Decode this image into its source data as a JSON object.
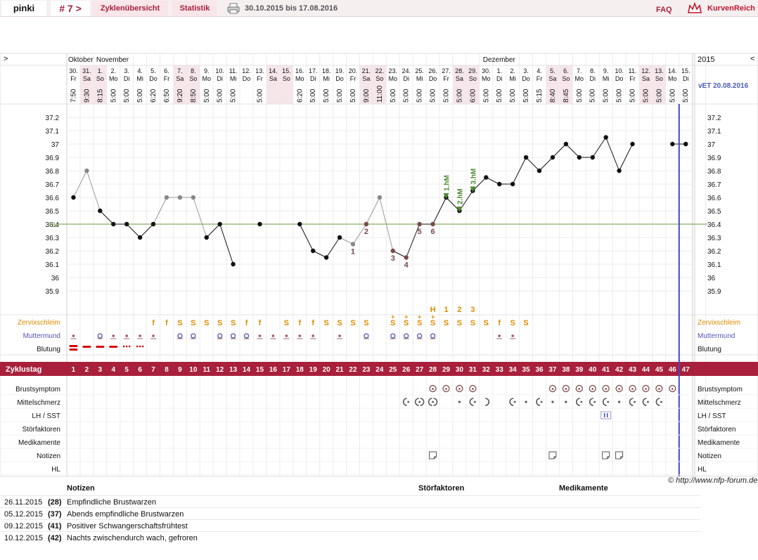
{
  "nav": {
    "user": "pinki",
    "cycle_nr": "# 7 >",
    "tab_zyklen": "Zyklenübersicht",
    "tab_statistik": "Statistik",
    "date_range": "30.10.2015 bis 17.08.2016",
    "faq": "FAQ",
    "logo_text": "KurvenReich"
  },
  "header": {
    "left_arrow": ">",
    "right_arrow": "<",
    "year": "2015",
    "vet": "vET 20.08.2016",
    "months": [
      {
        "name": "Oktober",
        "day": 0
      },
      {
        "name": "November",
        "day": 1
      },
      {
        "name": "Dezember",
        "day": 32
      }
    ]
  },
  "days": [
    {
      "d": "30.",
      "w": "Fr",
      "t": "7:50",
      "we": false
    },
    {
      "d": "31.",
      "w": "Sa",
      "t": "9:30",
      "we": true
    },
    {
      "d": "1.",
      "w": "So",
      "t": "8:15",
      "we": true
    },
    {
      "d": "2.",
      "w": "Mo",
      "t": "5:00",
      "we": false
    },
    {
      "d": "3.",
      "w": "Di",
      "t": "5:00",
      "we": false
    },
    {
      "d": "4.",
      "w": "Mi",
      "t": "5:00",
      "we": false
    },
    {
      "d": "5.",
      "w": "Do",
      "t": "6:20",
      "we": false
    },
    {
      "d": "6.",
      "w": "Fr",
      "t": "6:50",
      "we": false
    },
    {
      "d": "7.",
      "w": "Sa",
      "t": "9:20",
      "we": true
    },
    {
      "d": "8.",
      "w": "So",
      "t": "8:50",
      "we": true
    },
    {
      "d": "9.",
      "w": "Mo",
      "t": "5:00",
      "we": false
    },
    {
      "d": "10.",
      "w": "Di",
      "t": "5:00",
      "we": false
    },
    {
      "d": "11.",
      "w": "Mi",
      "t": "5:00",
      "we": false
    },
    {
      "d": "12.",
      "w": "Do",
      "t": "",
      "we": false
    },
    {
      "d": "13.",
      "w": "Fr",
      "t": "5:00",
      "we": false
    },
    {
      "d": "14.",
      "w": "Sa",
      "t": "",
      "we": true
    },
    {
      "d": "15.",
      "w": "So",
      "t": "",
      "we": true
    },
    {
      "d": "16.",
      "w": "Mo",
      "t": "6:20",
      "we": false
    },
    {
      "d": "17.",
      "w": "Di",
      "t": "5:00",
      "we": false
    },
    {
      "d": "18.",
      "w": "Mi",
      "t": "5:00",
      "we": false
    },
    {
      "d": "19.",
      "w": "Do",
      "t": "5:00",
      "we": false
    },
    {
      "d": "20.",
      "w": "Fr",
      "t": "5:00",
      "we": false
    },
    {
      "d": "21.",
      "w": "Sa",
      "t": "9:00",
      "we": true
    },
    {
      "d": "22.",
      "w": "So",
      "t": "11:00",
      "we": true
    },
    {
      "d": "23.",
      "w": "Mo",
      "t": "5:00",
      "we": false
    },
    {
      "d": "24.",
      "w": "Di",
      "t": "5:00",
      "we": false
    },
    {
      "d": "25.",
      "w": "Mi",
      "t": "5:00",
      "we": false
    },
    {
      "d": "26.",
      "w": "Do",
      "t": "5:00",
      "we": false
    },
    {
      "d": "27.",
      "w": "Fr",
      "t": "5:00",
      "we": false
    },
    {
      "d": "28.",
      "w": "Sa",
      "t": "5:00",
      "we": true
    },
    {
      "d": "29.",
      "w": "So",
      "t": "6:00",
      "we": true
    },
    {
      "d": "30.",
      "w": "Mo",
      "t": "5:00",
      "we": false
    },
    {
      "d": "1.",
      "w": "Di",
      "t": "5:00",
      "we": false
    },
    {
      "d": "2.",
      "w": "Mi",
      "t": "5:00",
      "we": false
    },
    {
      "d": "3.",
      "w": "Do",
      "t": "5:00",
      "we": false
    },
    {
      "d": "4.",
      "w": "Fr",
      "t": "5:15",
      "we": false
    },
    {
      "d": "5.",
      "w": "Sa",
      "t": "8:40",
      "we": true
    },
    {
      "d": "6.",
      "w": "So",
      "t": "8:45",
      "we": true
    },
    {
      "d": "7.",
      "w": "Mo",
      "t": "5:00",
      "we": false
    },
    {
      "d": "8.",
      "w": "Di",
      "t": "5:00",
      "we": false
    },
    {
      "d": "9.",
      "w": "Mi",
      "t": "5:00",
      "we": false
    },
    {
      "d": "10.",
      "w": "Do",
      "t": "5:00",
      "we": false
    },
    {
      "d": "11.",
      "w": "Fr",
      "t": "5:00",
      "we": false
    },
    {
      "d": "12.",
      "w": "Sa",
      "t": "5:00",
      "we": true
    },
    {
      "d": "13.",
      "w": "So",
      "t": "5:00",
      "we": true
    },
    {
      "d": "14.",
      "w": "Mo",
      "t": "5:00",
      "we": false
    },
    {
      "d": "15.",
      "w": "Di",
      "t": "5:00",
      "we": false
    }
  ],
  "chart_data": {
    "type": "line",
    "title": "",
    "xlabel": "Zyklustag",
    "ylabel": "",
    "ylim": [
      35.85,
      37.25
    ],
    "yticks": [
      "37.2",
      "37.1",
      "37",
      "36.9",
      "36.8",
      "36.7",
      "36.6",
      "36.5",
      "36.4",
      "36.3",
      "36.2",
      "36.1",
      "36",
      "35.9"
    ],
    "x": [
      1,
      2,
      3,
      4,
      5,
      6,
      7,
      8,
      9,
      10,
      11,
      12,
      13,
      14,
      15,
      16,
      17,
      18,
      19,
      20,
      21,
      22,
      23,
      24,
      25,
      26,
      27,
      28,
      29,
      30,
      31,
      32,
      33,
      34,
      35,
      36,
      37,
      38,
      39,
      40,
      41,
      42,
      43,
      44,
      45,
      46,
      47
    ],
    "series": [
      {
        "values": [
          36.6,
          36.8,
          36.5,
          36.4,
          36.4,
          36.3,
          36.4,
          36.6,
          36.6,
          36.6,
          36.3,
          36.4,
          36.1,
          null,
          36.4,
          null,
          null,
          36.4,
          36.2,
          36.15,
          36.3,
          36.25,
          36.4,
          36.6,
          36.2,
          36.15,
          36.4,
          36.4,
          36.6,
          36.5,
          36.65,
          36.75,
          36.7,
          36.7,
          36.9,
          36.8,
          36.9,
          37.0,
          36.9,
          36.9,
          37.05,
          36.8,
          37.0,
          null,
          null,
          37.0,
          37.0
        ]
      }
    ],
    "excluded_days": [
      2,
      8,
      9,
      10,
      22,
      24
    ],
    "hl": {
      "value": 36.4,
      "label": "HL"
    },
    "point_labels": [
      {
        "day": 22,
        "label": "1"
      },
      {
        "day": 23,
        "label": "2"
      },
      {
        "day": 25,
        "label": "3"
      },
      {
        "day": 26,
        "label": "4"
      },
      {
        "day": 27,
        "label": "5"
      },
      {
        "day": 28,
        "label": "6"
      }
    ],
    "peak_markers": [
      {
        "day": 29,
        "label": "1.hM"
      },
      {
        "day": 30,
        "label": "2.hM"
      },
      {
        "day": 31,
        "label": "3.hM"
      }
    ],
    "current_day": 47
  },
  "mucus": {
    "label": "Zervixschleim",
    "peak": [
      {
        "day": 28,
        "t": "H"
      },
      {
        "day": 29,
        "t": "1"
      },
      {
        "day": 30,
        "t": "2"
      },
      {
        "day": 31,
        "t": "3"
      }
    ],
    "values": [
      {
        "day": 7,
        "t": "f"
      },
      {
        "day": 8,
        "t": "f"
      },
      {
        "day": 9,
        "t": "S"
      },
      {
        "day": 10,
        "t": "S"
      },
      {
        "day": 11,
        "t": "S"
      },
      {
        "day": 12,
        "t": "S"
      },
      {
        "day": 13,
        "t": "S"
      },
      {
        "day": 14,
        "t": "f"
      },
      {
        "day": 15,
        "t": "f"
      },
      {
        "day": 17,
        "t": "S"
      },
      {
        "day": 18,
        "t": "f"
      },
      {
        "day": 19,
        "t": "f"
      },
      {
        "day": 20,
        "t": "S"
      },
      {
        "day": 21,
        "t": "S"
      },
      {
        "day": 22,
        "t": "S"
      },
      {
        "day": 23,
        "t": "S"
      },
      {
        "day": 25,
        "t": "S+"
      },
      {
        "day": 26,
        "t": "S+"
      },
      {
        "day": 27,
        "t": "S+"
      },
      {
        "day": 28,
        "t": "S+"
      },
      {
        "day": 29,
        "t": "S"
      },
      {
        "day": 30,
        "t": "S"
      },
      {
        "day": 31,
        "t": "S"
      },
      {
        "day": 32,
        "t": "S"
      },
      {
        "day": 33,
        "t": "f"
      },
      {
        "day": 34,
        "t": "S"
      },
      {
        "day": 35,
        "t": "S"
      }
    ]
  },
  "cervix": {
    "label": "Muttermund",
    "open": [
      3,
      9,
      10,
      12,
      13,
      14,
      23,
      25,
      26,
      27,
      28
    ],
    "closed": [
      1,
      4,
      5,
      6,
      7,
      15,
      16,
      17,
      18,
      19,
      21,
      33,
      34
    ]
  },
  "bleeding": {
    "label": "Blutung",
    "heavy": [
      1
    ],
    "medium": [
      2,
      3,
      4
    ],
    "spotting": [
      5,
      6
    ]
  },
  "cycle_row": {
    "label": "Zyklustag"
  },
  "symptoms": [
    {
      "key": "brust",
      "label": "Brustsymptom",
      "marks": [
        {
          "day": 28,
          "s": "breast"
        },
        {
          "day": 29,
          "s": "breast"
        },
        {
          "day": 30,
          "s": "breast"
        },
        {
          "day": 31,
          "s": "breast"
        },
        {
          "day": 37,
          "s": "breast"
        },
        {
          "day": 38,
          "s": "breast"
        },
        {
          "day": 39,
          "s": "breast"
        },
        {
          "day": 40,
          "s": "breast"
        },
        {
          "day": 41,
          "s": "breast"
        },
        {
          "day": 42,
          "s": "breast"
        },
        {
          "day": 43,
          "s": "breast"
        },
        {
          "day": 44,
          "s": "breast"
        },
        {
          "day": 45,
          "s": "breast"
        },
        {
          "day": 46,
          "s": "breast"
        }
      ]
    },
    {
      "key": "mittel",
      "label": "Mittelschmerz",
      "marks": [
        {
          "day": 26,
          "s": "left"
        },
        {
          "day": 27,
          "s": "both"
        },
        {
          "day": 28,
          "s": "both"
        },
        {
          "day": 30,
          "s": "dot"
        },
        {
          "day": 31,
          "s": "left"
        },
        {
          "day": 32,
          "s": "right"
        },
        {
          "day": 34,
          "s": "left"
        },
        {
          "day": 35,
          "s": "dot"
        },
        {
          "day": 36,
          "s": "left"
        },
        {
          "day": 37,
          "s": "dot"
        },
        {
          "day": 38,
          "s": "dot"
        },
        {
          "day": 39,
          "s": "left"
        },
        {
          "day": 40,
          "s": "left"
        },
        {
          "day": 41,
          "s": "left"
        },
        {
          "day": 42,
          "s": "dot"
        },
        {
          "day": 43,
          "s": "left"
        },
        {
          "day": 44,
          "s": "left"
        },
        {
          "day": 45,
          "s": "left"
        }
      ]
    },
    {
      "key": "lh",
      "label": "LH / SST",
      "marks": [
        {
          "day": 41,
          "s": "test"
        }
      ]
    },
    {
      "key": "stoer",
      "label": "Störfaktoren",
      "marks": []
    },
    {
      "key": "medi",
      "label": "Medikamente",
      "marks": []
    },
    {
      "key": "notiz",
      "label": "Notizen",
      "marks": [
        {
          "day": 28,
          "s": "note"
        },
        {
          "day": 37,
          "s": "note"
        },
        {
          "day": 41,
          "s": "note"
        },
        {
          "day": 42,
          "s": "note"
        }
      ]
    },
    {
      "key": "hl",
      "label": "HL",
      "marks": []
    }
  ],
  "credit": "© http://www.nfp-forum.de",
  "notes": {
    "col_notes": "Notizen",
    "col_stoer": "Störfaktoren",
    "col_medi": "Medikamente",
    "rows": [
      {
        "date": "26.11.2015",
        "day": "(28)",
        "text": "Empfindliche Brustwarzen"
      },
      {
        "date": "05.12.2015",
        "day": "(37)",
        "text": "Abends empfindliche Brustwarzen"
      },
      {
        "date": "09.12.2015",
        "day": "(41)",
        "text": "Positiver Schwangerschaftsfrühtest"
      },
      {
        "date": "10.12.2015",
        "day": "(42)",
        "text": "Nachts zwischendurch wach, gefroren"
      }
    ]
  },
  "colors": {
    "accent": "#a8203c",
    "weekend": "#f6e6ea",
    "hl_line": "#6a9a3a",
    "peak_green": "#4d8a2f",
    "mucus": "#e08a00",
    "cervix": "#5555bb",
    "excluded_point": "#888888",
    "cd_mark": "#7a4a4a",
    "vline": "#4444cc"
  }
}
